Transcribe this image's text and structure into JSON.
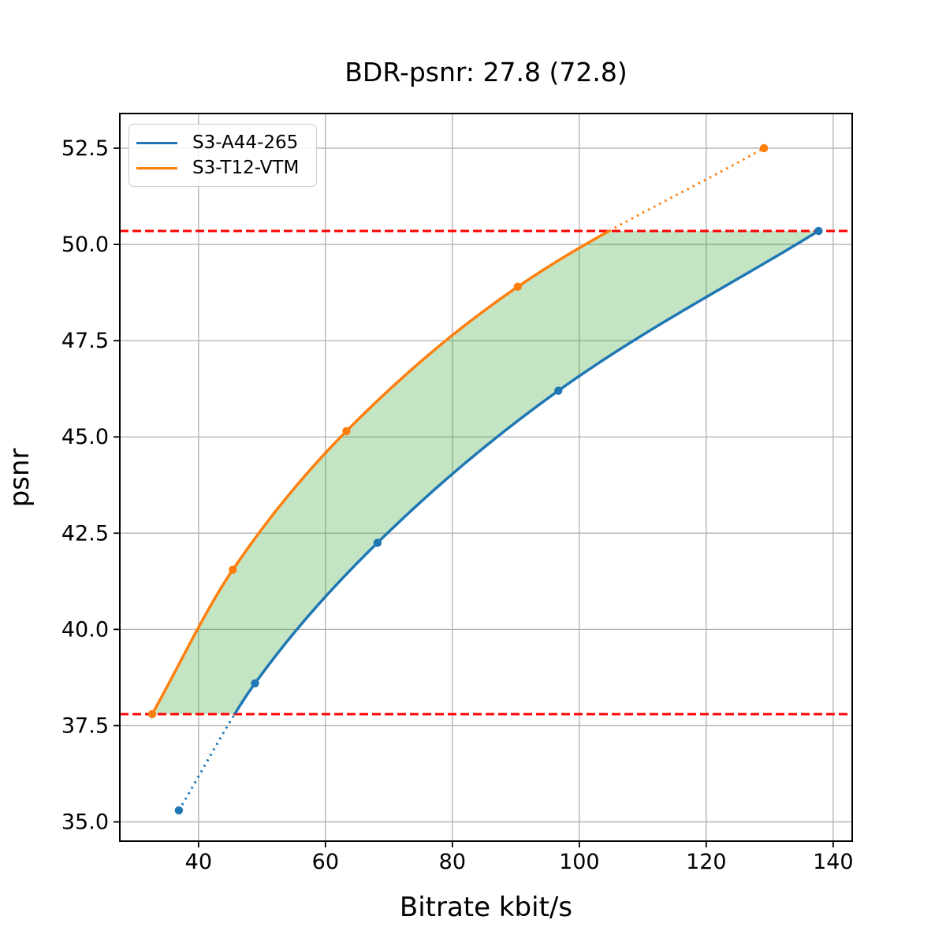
{
  "chart_data": {
    "type": "line",
    "title": "BDR-psnr: 27.8 (72.8)",
    "xlabel": "Bitrate kbit/s",
    "ylabel": "psnr",
    "xlim": [
      27.6,
      143.0
    ],
    "ylim": [
      34.5,
      53.4
    ],
    "x_ticks": [
      40,
      60,
      80,
      100,
      120,
      140
    ],
    "x_tick_labels": [
      "40",
      "60",
      "80",
      "100",
      "120",
      "140"
    ],
    "y_ticks": [
      35.0,
      37.5,
      40.0,
      42.5,
      45.0,
      47.5,
      50.0,
      52.5
    ],
    "y_tick_labels": [
      "35.0",
      "37.5",
      "40.0",
      "42.5",
      "45.0",
      "47.5",
      "50.0",
      "52.5"
    ],
    "grid": true,
    "grid_color": "#b0b0b0",
    "legend_position": "upper left",
    "series": [
      {
        "name": "S3-A44-265",
        "color": "#1f77b4",
        "points": [
          [
            36.9,
            35.3
          ],
          [
            48.9,
            38.6
          ],
          [
            68.2,
            42.25
          ],
          [
            96.7,
            46.2
          ],
          [
            137.7,
            50.35
          ]
        ]
      },
      {
        "name": "S3-T12-VTM",
        "color": "#ff7f0e",
        "points": [
          [
            32.7,
            37.8
          ],
          [
            45.4,
            41.55
          ],
          [
            63.3,
            45.15
          ],
          [
            90.3,
            48.9
          ],
          [
            129.1,
            52.5
          ]
        ]
      }
    ],
    "overlap_band": {
      "low": 37.8,
      "high": 50.35,
      "fill_color": "rgba(44,160,44,0.28)",
      "ref_line_color": "#ff0000"
    },
    "bdr_value_shown_in_title": "27.8",
    "bdr_percent_shown_in_title": "72.8"
  }
}
